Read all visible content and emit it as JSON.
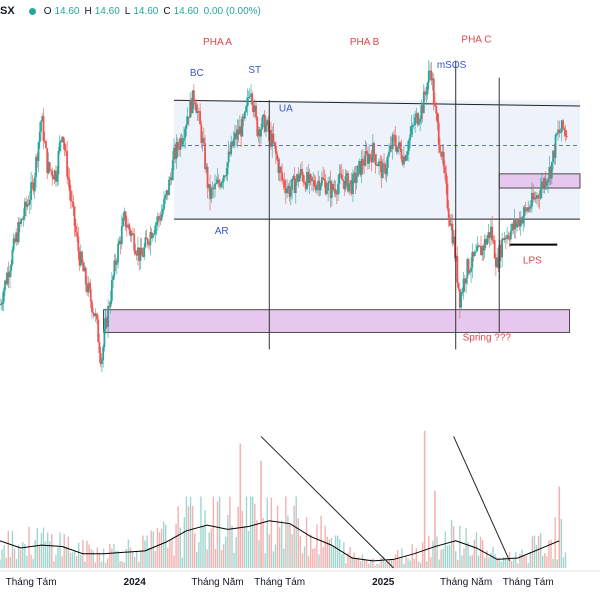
{
  "header": {
    "symbol": "SX",
    "open_label": "O",
    "open": "14.60",
    "high_label": "H",
    "high": "14.60",
    "low_label": "L",
    "low": "14.60",
    "close_label": "C",
    "close": "14.60",
    "change": "0.00 (0.00%)"
  },
  "colors": {
    "up": "#26a69a",
    "down": "#ef5350",
    "volume_ma": "#000000",
    "zone_fill": "#e6c7ee",
    "range_fill": "#eef2fa"
  },
  "chart_data": {
    "type": "candlestick",
    "title": "",
    "xlabel": "",
    "ylabel": "",
    "x_range": [
      0,
      28
    ],
    "x_ticks": [
      {
        "x": 1.5,
        "label": "Tháng Tám",
        "bold": false
      },
      {
        "x": 6.5,
        "label": "2024",
        "bold": true
      },
      {
        "x": 10.5,
        "label": "Tháng Năm",
        "bold": false
      },
      {
        "x": 13.5,
        "label": "Tháng Tám",
        "bold": false
      },
      {
        "x": 18.5,
        "label": "2025",
        "bold": true
      },
      {
        "x": 22.5,
        "label": "Tháng Năm",
        "bold": false
      },
      {
        "x": 25.5,
        "label": "Tháng Tám",
        "bold": false
      }
    ],
    "price_range": [
      9.8,
      15.4
    ],
    "price_series": [
      [
        0,
        11.0
      ],
      [
        0.8,
        12.2
      ],
      [
        1.6,
        13.1
      ],
      [
        2.0,
        14.3
      ],
      [
        2.3,
        13.4
      ],
      [
        2.7,
        13.3
      ],
      [
        3.0,
        14.1
      ],
      [
        3.4,
        12.9
      ],
      [
        3.8,
        11.9
      ],
      [
        4.2,
        11.3
      ],
      [
        4.6,
        10.8
      ],
      [
        4.9,
        10.0
      ],
      [
        5.1,
        10.6
      ],
      [
        5.6,
        11.8
      ],
      [
        6.0,
        12.5
      ],
      [
        6.4,
        12.2
      ],
      [
        6.8,
        11.8
      ],
      [
        7.3,
        12.3
      ],
      [
        7.8,
        12.6
      ],
      [
        8.1,
        13.0
      ],
      [
        8.4,
        13.6
      ],
      [
        8.8,
        14.0
      ],
      [
        9.1,
        14.4
      ],
      [
        9.4,
        14.7
      ],
      [
        9.8,
        13.8
      ],
      [
        10.1,
        12.9
      ],
      [
        10.5,
        13.1
      ],
      [
        10.9,
        13.4
      ],
      [
        11.3,
        13.9
      ],
      [
        11.8,
        14.2
      ],
      [
        12.1,
        14.9
      ],
      [
        12.4,
        14.1
      ],
      [
        12.8,
        14.2
      ],
      [
        13.2,
        13.8
      ],
      [
        13.6,
        13.2
      ],
      [
        14.0,
        13.0
      ],
      [
        14.5,
        13.3
      ],
      [
        15.0,
        13.1
      ],
      [
        15.5,
        13.2
      ],
      [
        16.0,
        13.0
      ],
      [
        16.5,
        13.2
      ],
      [
        17.0,
        13.1
      ],
      [
        17.5,
        13.5
      ],
      [
        18.0,
        13.7
      ],
      [
        18.5,
        13.3
      ],
      [
        19.0,
        13.9
      ],
      [
        19.5,
        13.6
      ],
      [
        20.0,
        14.2
      ],
      [
        20.4,
        14.5
      ],
      [
        20.8,
        15.2
      ],
      [
        21.0,
        14.4
      ],
      [
        21.3,
        13.7
      ],
      [
        21.6,
        12.8
      ],
      [
        21.9,
        12.1
      ],
      [
        22.2,
        11.1
      ],
      [
        22.5,
        11.6
      ],
      [
        22.9,
        11.8
      ],
      [
        23.3,
        12.0
      ],
      [
        23.7,
        12.3
      ],
      [
        24.0,
        11.7
      ],
      [
        24.3,
        12.2
      ],
      [
        24.7,
        12.3
      ],
      [
        25.1,
        12.5
      ],
      [
        25.5,
        12.7
      ],
      [
        25.9,
        12.9
      ],
      [
        26.3,
        13.2
      ],
      [
        26.6,
        13.4
      ],
      [
        26.9,
        14.0
      ],
      [
        27.2,
        14.1
      ],
      [
        27.4,
        14.0
      ]
    ],
    "volume_ma": [
      [
        0,
        0.19
      ],
      [
        1,
        0.14
      ],
      [
        2,
        0.16
      ],
      [
        3,
        0.15
      ],
      [
        4,
        0.1
      ],
      [
        5,
        0.1
      ],
      [
        6,
        0.11
      ],
      [
        7,
        0.12
      ],
      [
        8,
        0.18
      ],
      [
        9,
        0.26
      ],
      [
        10,
        0.3
      ],
      [
        11,
        0.27
      ],
      [
        12,
        0.29
      ],
      [
        13,
        0.33
      ],
      [
        14,
        0.31
      ],
      [
        15,
        0.22
      ],
      [
        16,
        0.16
      ],
      [
        17,
        0.07
      ],
      [
        18,
        0.05
      ],
      [
        19,
        0.06
      ],
      [
        20,
        0.1
      ],
      [
        21,
        0.15
      ],
      [
        22,
        0.19
      ],
      [
        23,
        0.14
      ],
      [
        24,
        0.06
      ],
      [
        25,
        0.07
      ],
      [
        26,
        0.13
      ],
      [
        27,
        0.19
      ]
    ],
    "volume_spikes": [
      [
        11.6,
        0.87
      ],
      [
        12.6,
        0.75
      ],
      [
        20.5,
        0.96
      ],
      [
        21.0,
        0.54
      ],
      [
        27.0,
        0.57
      ]
    ],
    "levels": {
      "resistance": 14.6,
      "resistance_end": 14.5,
      "dashed_mid": 13.8,
      "support": 12.5,
      "support_end": 12.5,
      "lps": 12.05
    },
    "zones": [
      {
        "x0": 5.0,
        "x1": 27.5,
        "y0": 10.5,
        "y1": 10.9
      },
      {
        "x0": 24.1,
        "x1": 28.0,
        "y0": 13.05,
        "y1": 13.3
      }
    ],
    "phase_lines": [
      {
        "x": 13.0,
        "y0": 10.2,
        "y1": 14.6
      },
      {
        "x": 22.0,
        "y0": 10.2,
        "y1": 15.3
      },
      {
        "x": 24.1,
        "y0": 10.5,
        "y1": 15.0
      }
    ],
    "volume_trend_lines": [
      {
        "x0": 12.6,
        "y0": 0.92,
        "x1": 19.0,
        "y1": 0.0
      },
      {
        "x0": 21.9,
        "y0": 0.92,
        "x1": 24.6,
        "y1": 0.05
      }
    ],
    "annotations": [
      {
        "text": "PHA A",
        "kind": "phase",
        "x": 10.5,
        "y": 15.58
      },
      {
        "text": "PHA B",
        "kind": "phase",
        "x": 17.6,
        "y": 15.58
      },
      {
        "text": "PHA C",
        "kind": "phase",
        "x": 23.0,
        "y": 15.62
      },
      {
        "text": "BC",
        "kind": "event",
        "x": 9.5,
        "y": 15.03
      },
      {
        "text": "ST",
        "kind": "event",
        "x": 12.3,
        "y": 15.08
      },
      {
        "text": "UA",
        "kind": "event",
        "x": 13.8,
        "y": 14.4
      },
      {
        "text": "mSOS",
        "kind": "event",
        "x": 21.8,
        "y": 15.17
      },
      {
        "text": "AR",
        "kind": "event",
        "x": 10.7,
        "y": 12.24
      },
      {
        "text": "LPS",
        "kind": "red",
        "x": 25.7,
        "y": 11.72
      },
      {
        "text": "Spring ???",
        "kind": "red",
        "x": 23.5,
        "y": 10.36
      }
    ]
  }
}
